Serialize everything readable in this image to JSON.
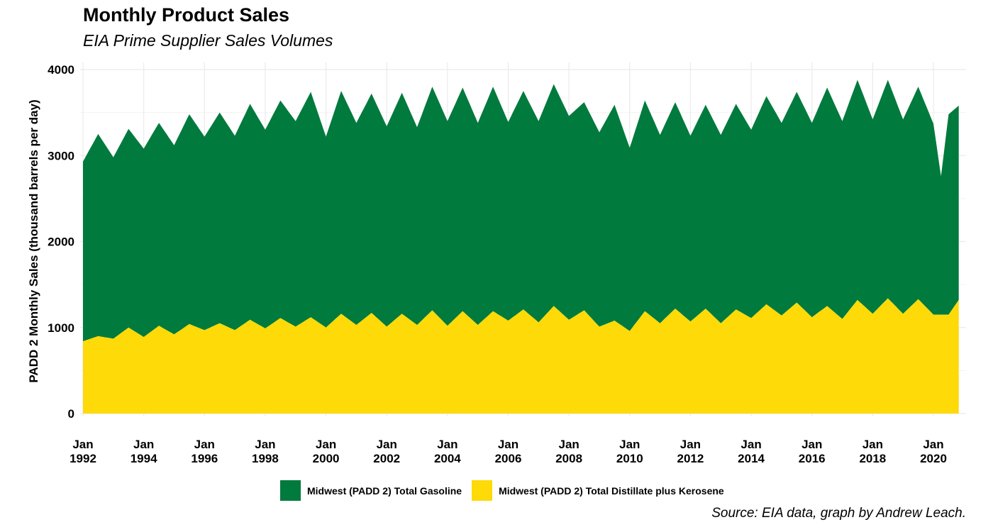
{
  "chart_data": {
    "type": "area",
    "stacked": true,
    "title": "Monthly Product Sales",
    "subtitle": "EIA Prime Supplier Sales Volumes",
    "caption": "Source: EIA data, graph by Andrew Leach.",
    "xlabel": "",
    "ylabel": "PADD 2 Monthly Sales (thousand barrels per day)",
    "ylim": [
      0,
      4000
    ],
    "yticks": [
      0,
      1000,
      2000,
      3000,
      4000
    ],
    "xlim": [
      "1992-01",
      "2020-11"
    ],
    "xticks": [
      {
        "month": "Jan",
        "year": "1992"
      },
      {
        "month": "Jan",
        "year": "1994"
      },
      {
        "month": "Jan",
        "year": "1996"
      },
      {
        "month": "Jan",
        "year": "1998"
      },
      {
        "month": "Jan",
        "year": "2000"
      },
      {
        "month": "Jan",
        "year": "2002"
      },
      {
        "month": "Jan",
        "year": "2004"
      },
      {
        "month": "Jan",
        "year": "2006"
      },
      {
        "month": "Jan",
        "year": "2008"
      },
      {
        "month": "Jan",
        "year": "2010"
      },
      {
        "month": "Jan",
        "year": "2012"
      },
      {
        "month": "Jan",
        "year": "2014"
      },
      {
        "month": "Jan",
        "year": "2016"
      },
      {
        "month": "Jan",
        "year": "2018"
      },
      {
        "month": "Jan",
        "year": "2020"
      }
    ],
    "grid": true,
    "legend_position": "bottom",
    "colors": {
      "gasoline": "#007a3d",
      "distillate": "#fdda08"
    },
    "series": [
      {
        "name": "Midwest (PADD 2) Total Distillate plus Kerosene",
        "color": "#fdda08",
        "note_values": "total sales, thousand barrels per day, approximate readings at selected months",
        "points": [
          [
            "1992-01",
            840
          ],
          [
            "1992-07",
            900
          ],
          [
            "1993-01",
            870
          ],
          [
            "1993-07",
            1000
          ],
          [
            "1994-01",
            890
          ],
          [
            "1994-07",
            1020
          ],
          [
            "1995-01",
            920
          ],
          [
            "1995-07",
            1040
          ],
          [
            "1996-01",
            970
          ],
          [
            "1996-07",
            1050
          ],
          [
            "1997-01",
            970
          ],
          [
            "1997-07",
            1090
          ],
          [
            "1998-01",
            990
          ],
          [
            "1998-07",
            1110
          ],
          [
            "1999-01",
            1010
          ],
          [
            "1999-07",
            1120
          ],
          [
            "2000-01",
            1000
          ],
          [
            "2000-07",
            1160
          ],
          [
            "2001-01",
            1030
          ],
          [
            "2001-07",
            1170
          ],
          [
            "2002-01",
            1010
          ],
          [
            "2002-07",
            1160
          ],
          [
            "2003-01",
            1030
          ],
          [
            "2003-07",
            1200
          ],
          [
            "2004-01",
            1020
          ],
          [
            "2004-07",
            1190
          ],
          [
            "2005-01",
            1030
          ],
          [
            "2005-07",
            1190
          ],
          [
            "2006-01",
            1080
          ],
          [
            "2006-07",
            1210
          ],
          [
            "2007-01",
            1060
          ],
          [
            "2007-07",
            1250
          ],
          [
            "2008-01",
            1090
          ],
          [
            "2008-07",
            1200
          ],
          [
            "2009-01",
            1010
          ],
          [
            "2009-07",
            1080
          ],
          [
            "2010-01",
            960
          ],
          [
            "2010-07",
            1190
          ],
          [
            "2011-01",
            1050
          ],
          [
            "2011-07",
            1220
          ],
          [
            "2012-01",
            1070
          ],
          [
            "2012-07",
            1220
          ],
          [
            "2013-01",
            1050
          ],
          [
            "2013-07",
            1210
          ],
          [
            "2014-01",
            1110
          ],
          [
            "2014-07",
            1270
          ],
          [
            "2015-01",
            1140
          ],
          [
            "2015-07",
            1290
          ],
          [
            "2016-01",
            1120
          ],
          [
            "2016-07",
            1250
          ],
          [
            "2017-01",
            1100
          ],
          [
            "2017-07",
            1320
          ],
          [
            "2018-01",
            1160
          ],
          [
            "2018-07",
            1340
          ],
          [
            "2019-01",
            1160
          ],
          [
            "2019-07",
            1330
          ],
          [
            "2020-01",
            1150
          ],
          [
            "2020-07",
            1150
          ],
          [
            "2020-11",
            1320
          ]
        ]
      },
      {
        "name": "Midwest (PADD 2) Total Gasoline",
        "color": "#007a3d",
        "note_values": "stacked on distillate; values are stacked total (gasoline + distillate), thousand barrels per day",
        "points": [
          [
            "1992-01",
            2930
          ],
          [
            "1992-07",
            3250
          ],
          [
            "1993-01",
            2980
          ],
          [
            "1993-07",
            3310
          ],
          [
            "1994-01",
            3080
          ],
          [
            "1994-07",
            3380
          ],
          [
            "1995-01",
            3120
          ],
          [
            "1995-07",
            3480
          ],
          [
            "1996-01",
            3220
          ],
          [
            "1996-07",
            3500
          ],
          [
            "1997-01",
            3230
          ],
          [
            "1997-07",
            3600
          ],
          [
            "1998-01",
            3300
          ],
          [
            "1998-07",
            3640
          ],
          [
            "1999-01",
            3400
          ],
          [
            "1999-07",
            3740
          ],
          [
            "2000-01",
            3220
          ],
          [
            "2000-07",
            3750
          ],
          [
            "2001-01",
            3380
          ],
          [
            "2001-07",
            3720
          ],
          [
            "2002-01",
            3340
          ],
          [
            "2002-07",
            3730
          ],
          [
            "2003-01",
            3330
          ],
          [
            "2003-07",
            3800
          ],
          [
            "2004-01",
            3400
          ],
          [
            "2004-07",
            3790
          ],
          [
            "2005-01",
            3380
          ],
          [
            "2005-07",
            3800
          ],
          [
            "2006-01",
            3390
          ],
          [
            "2006-07",
            3750
          ],
          [
            "2007-01",
            3400
          ],
          [
            "2007-07",
            3830
          ],
          [
            "2008-01",
            3460
          ],
          [
            "2008-07",
            3620
          ],
          [
            "2009-01",
            3270
          ],
          [
            "2009-07",
            3590
          ],
          [
            "2010-01",
            3090
          ],
          [
            "2010-07",
            3640
          ],
          [
            "2011-01",
            3240
          ],
          [
            "2011-07",
            3620
          ],
          [
            "2012-01",
            3230
          ],
          [
            "2012-07",
            3590
          ],
          [
            "2013-01",
            3240
          ],
          [
            "2013-07",
            3600
          ],
          [
            "2014-01",
            3300
          ],
          [
            "2014-07",
            3690
          ],
          [
            "2015-01",
            3380
          ],
          [
            "2015-07",
            3740
          ],
          [
            "2016-01",
            3380
          ],
          [
            "2016-07",
            3790
          ],
          [
            "2017-01",
            3400
          ],
          [
            "2017-07",
            3880
          ],
          [
            "2018-01",
            3420
          ],
          [
            "2018-07",
            3880
          ],
          [
            "2019-01",
            3420
          ],
          [
            "2019-07",
            3800
          ],
          [
            "2020-01",
            3370
          ],
          [
            "2020-04",
            2760
          ],
          [
            "2020-07",
            3480
          ],
          [
            "2020-11",
            3580
          ]
        ]
      }
    ]
  }
}
